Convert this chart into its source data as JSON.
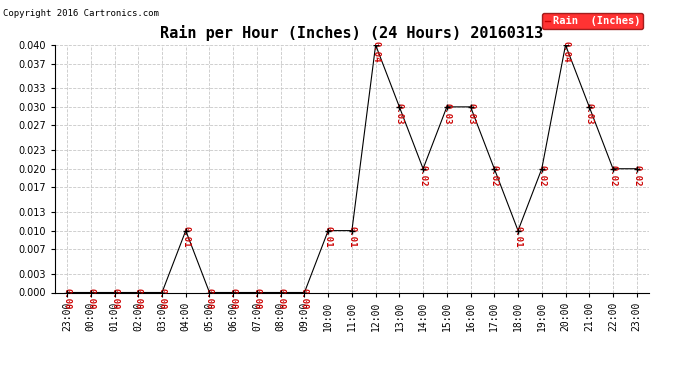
{
  "title": "Rain per Hour (Inches) (24 Hours) 20160313",
  "copyright": "Copyright 2016 Cartronics.com",
  "legend_label": "Rain  (Inches)",
  "hours": [
    "23:00",
    "00:00",
    "01:00",
    "02:00",
    "03:00",
    "04:00",
    "05:00",
    "06:00",
    "07:00",
    "08:00",
    "09:00",
    "10:00",
    "11:00",
    "12:00",
    "13:00",
    "14:00",
    "15:00",
    "16:00",
    "17:00",
    "18:00",
    "19:00",
    "20:00",
    "21:00",
    "22:00",
    "23:00"
  ],
  "values": [
    0.0,
    0.0,
    0.0,
    0.0,
    0.0,
    0.01,
    0.0,
    0.0,
    0.0,
    0.0,
    0.0,
    0.01,
    0.01,
    0.04,
    0.03,
    0.02,
    0.03,
    0.03,
    0.02,
    0.01,
    0.02,
    0.04,
    0.03,
    0.02,
    0.02
  ],
  "line_color": "#cc0000",
  "marker_color": "#000000",
  "label_color": "#cc0000",
  "background_color": "#ffffff",
  "grid_color": "#c8c8c8",
  "ylim": [
    0.0,
    0.04
  ],
  "yticks": [
    0.0,
    0.003,
    0.007,
    0.01,
    0.013,
    0.017,
    0.02,
    0.023,
    0.027,
    0.03,
    0.033,
    0.037,
    0.04
  ],
  "title_fontsize": 11,
  "copyright_fontsize": 6.5,
  "legend_fontsize": 7.5,
  "label_fontsize": 6.5,
  "tick_fontsize": 7
}
